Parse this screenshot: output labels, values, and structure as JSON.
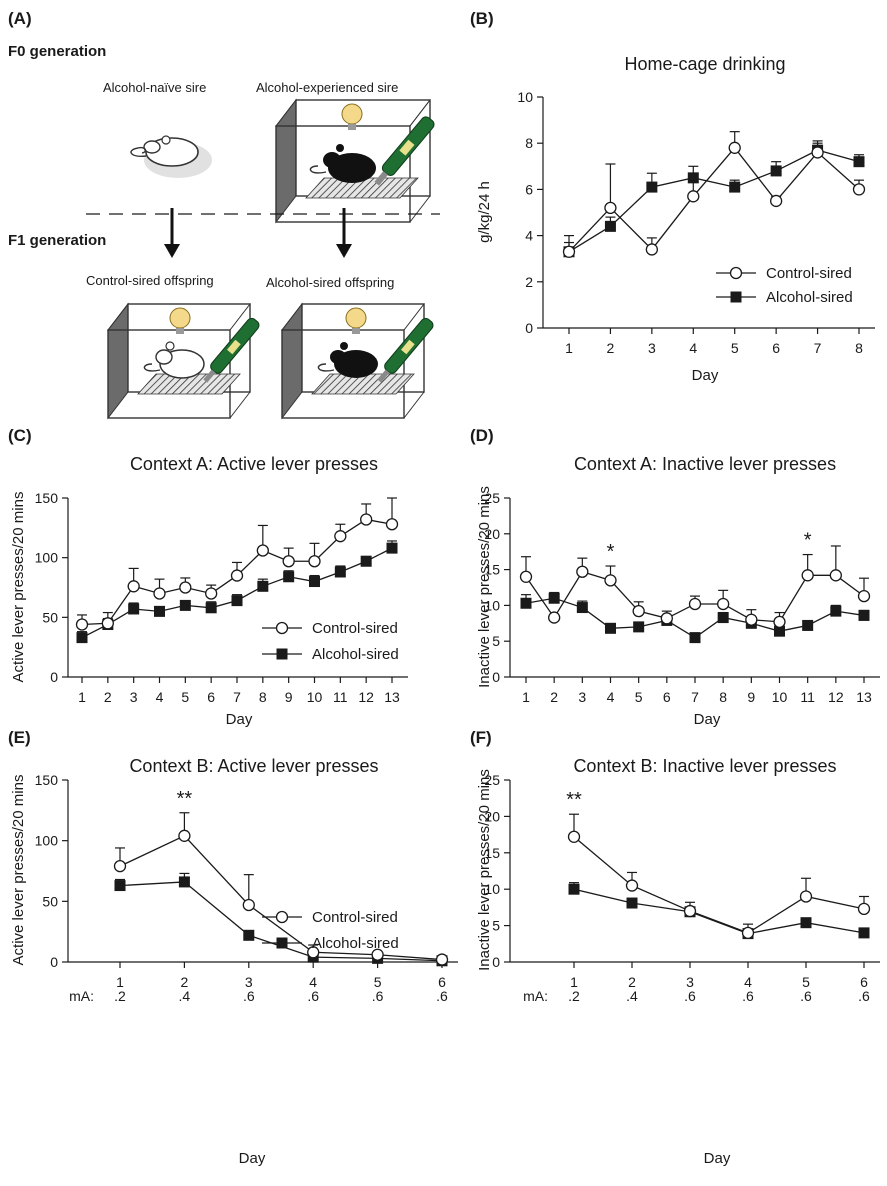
{
  "panel_a": {
    "letter": "(A)",
    "f0_label": "F0 generation",
    "f1_label": "F1 generation",
    "naive_sire": "Alcohol-naïve sire",
    "experienced_sire": "Alcohol-experienced sire",
    "control_offspring": "Control-sired offspring",
    "alcohol_offspring": "Alcohol-sired offspring"
  },
  "chart_data": [
    {
      "panel": "(B)",
      "type": "line",
      "title": "Home-cage drinking",
      "xlabel": "Day",
      "ylabel": "g/kg/24 h",
      "categories": [
        "1",
        "2",
        "3",
        "4",
        "5",
        "6",
        "7",
        "8"
      ],
      "ylim": [
        0,
        10
      ],
      "yticks": [
        "0",
        "2",
        "4",
        "6",
        "8",
        "10"
      ],
      "legend": "bottom-right",
      "series": [
        {
          "name": "Control-sired",
          "marker": "open-circle",
          "values": [
            3.3,
            5.2,
            3.4,
            5.7,
            7.8,
            5.5,
            7.6,
            6.0
          ],
          "errors": [
            0.7,
            1.9,
            0.5,
            0.7,
            0.7,
            0.2,
            0.5,
            0.4
          ]
        },
        {
          "name": "Alcohol-sired",
          "marker": "filled-square",
          "values": [
            3.3,
            4.4,
            6.1,
            6.5,
            6.1,
            6.8,
            7.7,
            7.2
          ],
          "errors": [
            0.4,
            0.4,
            0.6,
            0.5,
            0.3,
            0.4,
            0.3,
            0.3
          ]
        }
      ]
    },
    {
      "panel": "(C)",
      "type": "line",
      "title": "Context A: Active lever presses",
      "xlabel": "Day",
      "ylabel": "Active lever presses/20 mins",
      "categories": [
        "1",
        "2",
        "3",
        "4",
        "5",
        "6",
        "7",
        "8",
        "9",
        "10",
        "11",
        "12",
        "13"
      ],
      "ylim": [
        0,
        150
      ],
      "yticks": [
        "0",
        "50",
        "100",
        "150"
      ],
      "legend": "bottom-right",
      "series": [
        {
          "name": "Control-sired",
          "marker": "open-circle",
          "values": [
            44,
            45,
            76,
            70,
            75,
            70,
            85,
            106,
            97,
            97,
            118,
            132,
            128
          ],
          "errors": [
            8,
            9,
            15,
            12,
            8,
            7,
            11,
            21,
            11,
            15,
            10,
            13,
            22
          ]
        },
        {
          "name": "Alcohol-sired",
          "marker": "filled-square",
          "values": [
            33,
            44,
            57,
            55,
            60,
            58,
            64,
            76,
            84,
            80,
            88,
            97,
            108
          ],
          "errors": [
            5,
            5,
            5,
            4,
            4,
            5,
            5,
            6,
            5,
            5,
            5,
            4,
            6
          ]
        }
      ]
    },
    {
      "panel": "(D)",
      "type": "line",
      "title": "Context A: Inactive lever presses",
      "xlabel": "Day",
      "ylabel": "Inactive lever presses/20 mins",
      "categories": [
        "1",
        "2",
        "3",
        "4",
        "5",
        "6",
        "7",
        "8",
        "9",
        "10",
        "11",
        "12",
        "13"
      ],
      "ylim": [
        0,
        25
      ],
      "yticks": [
        "0",
        "5",
        "10",
        "15",
        "20",
        "25"
      ],
      "annotations": [
        {
          "day": "4",
          "text": "*"
        },
        {
          "day": "11",
          "text": "*"
        }
      ],
      "series": [
        {
          "name": "Control-sired",
          "marker": "open-circle",
          "values": [
            14.0,
            8.3,
            14.7,
            13.5,
            9.2,
            8.2,
            10.2,
            10.2,
            8.0,
            7.7,
            14.2,
            14.2,
            11.3
          ],
          "errors": [
            2.8,
            0,
            1.9,
            2.0,
            1.3,
            1.0,
            1.1,
            1.9,
            1.4,
            1.3,
            2.9,
            4.1,
            2.5
          ]
        },
        {
          "name": "Alcohol-sired",
          "marker": "filled-square",
          "values": [
            10.3,
            11.0,
            9.7,
            6.8,
            7.0,
            7.9,
            5.5,
            8.3,
            7.5,
            6.4,
            7.2,
            9.2,
            8.6
          ],
          "errors": [
            1.2,
            0.8,
            0.9,
            0.5,
            0.4,
            0.5,
            0.3,
            0.7,
            0.6,
            0.5,
            0.5,
            0.8,
            0.7
          ]
        }
      ]
    },
    {
      "panel": "(E)",
      "type": "line",
      "title": "Context B: Active lever presses",
      "xlabel": "Day",
      "ylabel": "Active lever presses/20 mins",
      "categories": [
        "1",
        "2",
        "3",
        "4",
        "5",
        "6"
      ],
      "ma_label": "mA:",
      "ma_values": [
        ".2",
        ".4",
        ".6",
        ".6",
        ".6",
        ".6"
      ],
      "ylim": [
        0,
        150
      ],
      "yticks": [
        "0",
        "50",
        "100",
        "150"
      ],
      "legend": "bottom-right",
      "annotations": [
        {
          "day": "2",
          "text": "**"
        }
      ],
      "series": [
        {
          "name": "Control-sired",
          "marker": "open-circle",
          "values": [
            79,
            104,
            47,
            8,
            6,
            2
          ],
          "errors": [
            15,
            19,
            25,
            6,
            1,
            1
          ]
        },
        {
          "name": "Alcohol-sired",
          "marker": "filled-square",
          "values": [
            63,
            66,
            22,
            4,
            3,
            1
          ],
          "errors": [
            5,
            7,
            2,
            2,
            1,
            1
          ]
        }
      ]
    },
    {
      "panel": "(F)",
      "type": "line",
      "title": "Context B: Inactive lever presses",
      "xlabel": "Day",
      "ylabel": "Inactive lever presses/20 mins",
      "categories": [
        "1",
        "2",
        "3",
        "4",
        "5",
        "6"
      ],
      "ma_label": "mA:",
      "ma_values": [
        ".2",
        ".4",
        ".6",
        ".6",
        ".6",
        ".6"
      ],
      "ylim": [
        0,
        25
      ],
      "yticks": [
        "0",
        "5",
        "10",
        "15",
        "20",
        "25"
      ],
      "annotations": [
        {
          "day": "1",
          "text": "**"
        }
      ],
      "series": [
        {
          "name": "Control-sired",
          "marker": "open-circle",
          "values": [
            17.2,
            10.5,
            7.0,
            4.0,
            9.0,
            7.3
          ],
          "errors": [
            3.1,
            1.8,
            1.2,
            1.2,
            2.5,
            1.7
          ]
        },
        {
          "name": "Alcohol-sired",
          "marker": "filled-square",
          "values": [
            10.0,
            8.1,
            6.9,
            3.9,
            5.4,
            4.0
          ],
          "errors": [
            0.9,
            0.5,
            0.5,
            0.4,
            0.6,
            0.5
          ]
        }
      ]
    }
  ]
}
